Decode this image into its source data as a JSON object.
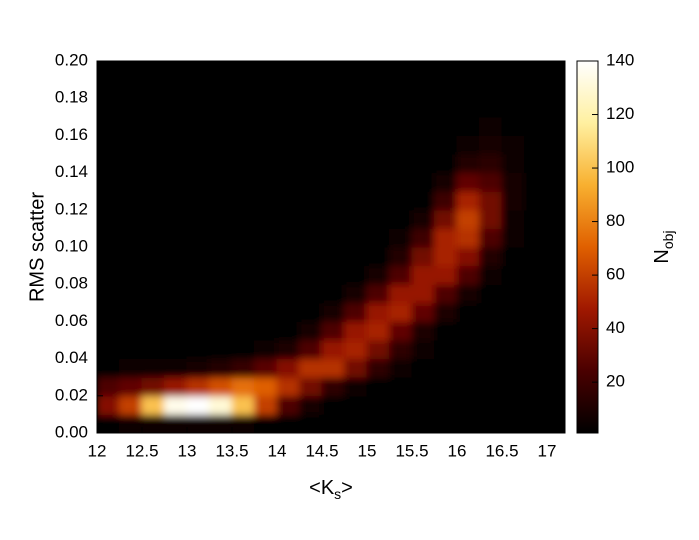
{
  "chart_data": {
    "type": "heatmap",
    "xlabel": [
      "<K",
      "s",
      ">"
    ],
    "ylabel": "RMS scatter",
    "colorbar_label": [
      "N",
      "obj"
    ],
    "xlim": [
      12,
      17.2
    ],
    "ylim": [
      0,
      0.2
    ],
    "xticks": [
      12,
      12.5,
      13,
      13.5,
      14,
      14.5,
      15,
      15.5,
      16,
      16.5,
      17
    ],
    "yticks": [
      {
        "value": 0,
        "label": "0.00"
      },
      {
        "value": 0.02,
        "label": "0.02"
      },
      {
        "value": 0.04,
        "label": "0.04"
      },
      {
        "value": 0.06,
        "label": "0.06"
      },
      {
        "value": 0.08,
        "label": "0.08"
      },
      {
        "value": 0.1,
        "label": "0.10"
      },
      {
        "value": 0.12,
        "label": "0.12"
      },
      {
        "value": 0.14,
        "label": "0.14"
      },
      {
        "value": 0.16,
        "label": "0.16"
      },
      {
        "value": 0.18,
        "label": "0.18"
      },
      {
        "value": 0.2,
        "label": "0.20"
      }
    ],
    "clim": [
      1,
      140
    ],
    "cticks": [
      20,
      40,
      60,
      80,
      100,
      120,
      140
    ],
    "colormap": [
      "#000000",
      "#4a0000",
      "#a01800",
      "#e06000",
      "#f8b030",
      "#fff0a0",
      "#ffffff"
    ],
    "xbins": [
      12,
      12.25,
      12.5,
      12.75,
      13,
      13.25,
      13.5,
      13.75,
      14,
      14.25,
      14.5,
      14.75,
      15,
      15.25,
      15.5,
      15.75,
      16,
      16.25,
      16.5,
      16.75,
      17,
      17.25
    ],
    "ybins": [
      0,
      0.01,
      0.02,
      0.03,
      0.04,
      0.05,
      0.06,
      0.07,
      0.08,
      0.09,
      0.1,
      0.11,
      0.12,
      0.13,
      0.14,
      0.15,
      0.16,
      0.17,
      0.18,
      0.19,
      0.2
    ],
    "z": [
      [
        3,
        4,
        5,
        6,
        6,
        5,
        4,
        2,
        1,
        0,
        0,
        0,
        0,
        0,
        0,
        0,
        0,
        0,
        0,
        0,
        0
      ],
      [
        40,
        60,
        100,
        135,
        140,
        130,
        100,
        60,
        25,
        8,
        2,
        0,
        0,
        0,
        0,
        0,
        0,
        0,
        0,
        0,
        0
      ],
      [
        25,
        30,
        35,
        45,
        55,
        65,
        75,
        70,
        55,
        35,
        15,
        5,
        1,
        0,
        0,
        0,
        0,
        0,
        0,
        0,
        0
      ],
      [
        3,
        4,
        5,
        6,
        8,
        12,
        18,
        28,
        40,
        55,
        55,
        35,
        15,
        4,
        1,
        0,
        0,
        0,
        0,
        0,
        0
      ],
      [
        0,
        0,
        0,
        1,
        1,
        2,
        3,
        5,
        10,
        25,
        45,
        50,
        35,
        15,
        4,
        1,
        0,
        0,
        0,
        0,
        0
      ],
      [
        0,
        0,
        0,
        0,
        0,
        0,
        0,
        1,
        2,
        8,
        25,
        45,
        50,
        30,
        10,
        2,
        0,
        0,
        0,
        0,
        0
      ],
      [
        0,
        0,
        0,
        0,
        0,
        0,
        0,
        0,
        1,
        2,
        8,
        25,
        45,
        50,
        30,
        10,
        2,
        0,
        0,
        0,
        0
      ],
      [
        0,
        0,
        0,
        0,
        0,
        0,
        0,
        0,
        0,
        1,
        2,
        8,
        25,
        45,
        45,
        25,
        8,
        2,
        0,
        0,
        0
      ],
      [
        0,
        0,
        0,
        0,
        0,
        0,
        0,
        0,
        0,
        0,
        1,
        2,
        8,
        25,
        45,
        45,
        25,
        6,
        1,
        0,
        0
      ],
      [
        0,
        0,
        0,
        0,
        0,
        0,
        0,
        0,
        0,
        0,
        0,
        1,
        3,
        12,
        35,
        50,
        40,
        12,
        2,
        0,
        0
      ],
      [
        0,
        0,
        0,
        0,
        0,
        0,
        0,
        0,
        0,
        0,
        0,
        0,
        1,
        5,
        20,
        50,
        55,
        25,
        4,
        0,
        0
      ],
      [
        0,
        0,
        0,
        0,
        0,
        0,
        0,
        0,
        0,
        0,
        0,
        0,
        0,
        2,
        8,
        35,
        60,
        35,
        6,
        1,
        0
      ],
      [
        0,
        0,
        0,
        0,
        0,
        0,
        0,
        0,
        0,
        0,
        0,
        0,
        0,
        1,
        3,
        20,
        50,
        35,
        8,
        1,
        0
      ],
      [
        0,
        0,
        0,
        0,
        0,
        0,
        0,
        0,
        0,
        0,
        0,
        0,
        0,
        0,
        1,
        8,
        30,
        25,
        8,
        2,
        0
      ],
      [
        0,
        0,
        0,
        0,
        0,
        0,
        0,
        0,
        0,
        0,
        0,
        0,
        0,
        0,
        0,
        3,
        12,
        14,
        6,
        2,
        0
      ],
      [
        0,
        0,
        0,
        0,
        0,
        0,
        0,
        0,
        0,
        0,
        0,
        0,
        0,
        0,
        0,
        1,
        5,
        7,
        4,
        1,
        0
      ],
      [
        0,
        0,
        0,
        0,
        0,
        0,
        0,
        0,
        0,
        0,
        0,
        0,
        0,
        0,
        0,
        0,
        2,
        4,
        3,
        1,
        0
      ],
      [
        0,
        0,
        0,
        0,
        0,
        0,
        0,
        0,
        0,
        0,
        0,
        0,
        0,
        0,
        0,
        0,
        1,
        2,
        2,
        1,
        0
      ],
      [
        0,
        0,
        0,
        0,
        0,
        0,
        0,
        0,
        0,
        0,
        0,
        0,
        0,
        0,
        0,
        0,
        0,
        1,
        1,
        0,
        0
      ],
      [
        0,
        0,
        0,
        0,
        0,
        0,
        0,
        0,
        0,
        0,
        0,
        0,
        0,
        0,
        0,
        0,
        0,
        1,
        1,
        0,
        0
      ]
    ]
  }
}
